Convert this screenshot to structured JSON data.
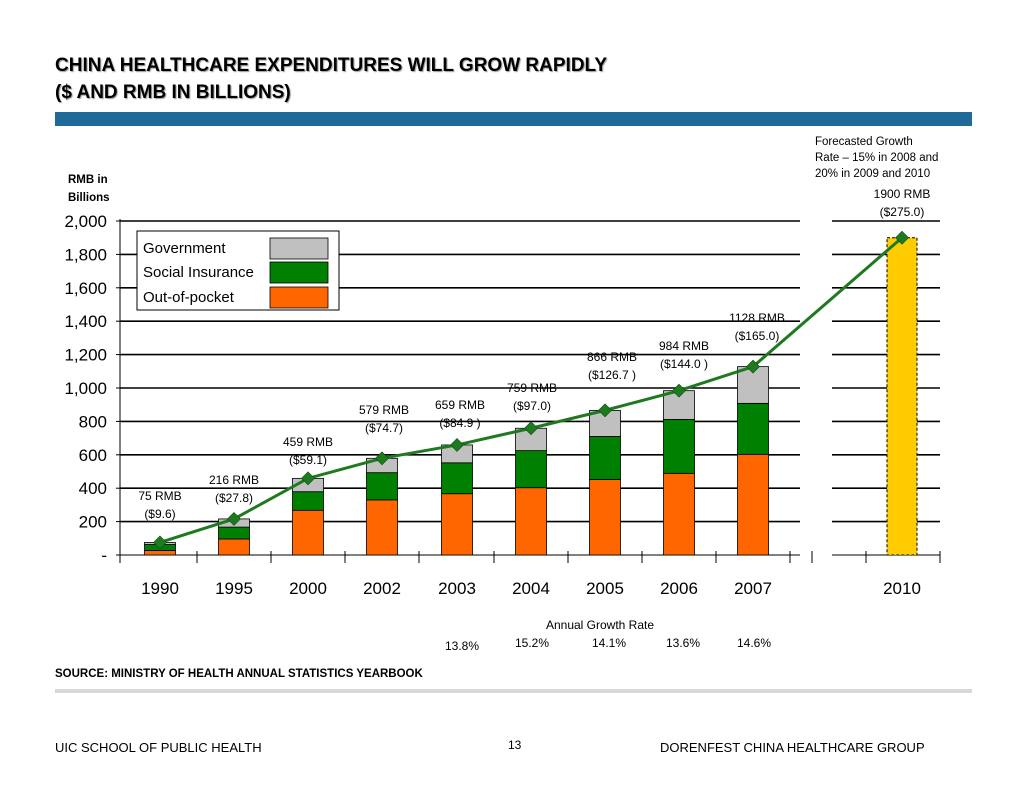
{
  "slide": {
    "title_line1": "CHINA HEALTHCARE EXPENDITURES WILL GROW RAPIDLY",
    "title_line2": "($ AND RMB IN BILLIONS)",
    "source": "SOURCE:  MINISTRY OF HEALTH ANNUAL STATISTICS YEARBOOK",
    "footer_left": "UIC SCHOOL OF PUBLIC HEALTH",
    "page_number": "13",
    "footer_right": "DORENFEST CHINA HEALTHCARE GROUP"
  },
  "colors": {
    "government": "#c0c0c0",
    "social_insurance": "#008000",
    "out_of_pocket": "#ff6600",
    "forecast_bar": "#ffcc00",
    "trend_line": "#1f7a1f"
  },
  "chart_data": {
    "type": "bar",
    "ylabel_line1": "RMB in",
    "ylabel_line2": "Billions",
    "ylim": [
      0,
      2000
    ],
    "yticks": [
      {
        "value": 0,
        "label": "-"
      },
      {
        "value": 200,
        "label": "200"
      },
      {
        "value": 400,
        "label": "400"
      },
      {
        "value": 600,
        "label": "600"
      },
      {
        "value": 800,
        "label": "800"
      },
      {
        "value": 1000,
        "label": "1,000"
      },
      {
        "value": 1200,
        "label": "1,200"
      },
      {
        "value": 1400,
        "label": "1,400"
      },
      {
        "value": 1600,
        "label": "1,600"
      },
      {
        "value": 1800,
        "label": "1,800"
      },
      {
        "value": 2000,
        "label": "2,000"
      }
    ],
    "categories": [
      "1990",
      "1995",
      "2000",
      "2002",
      "2003",
      "2004",
      "2005",
      "2006",
      "2007",
      "2010"
    ],
    "series": [
      {
        "name": "Out-of-pocket",
        "values": [
          27,
          96,
          268,
          330,
          367,
          403,
          452,
          489,
          603,
          null
        ]
      },
      {
        "name": "Social Insurance",
        "values": [
          36,
          71,
          111,
          163,
          185,
          222,
          258,
          323,
          305,
          null
        ]
      },
      {
        "name": "Government",
        "values": [
          12,
          49,
          80,
          86,
          107,
          134,
          156,
          172,
          220,
          null
        ]
      }
    ],
    "forecast": {
      "category": "2010",
      "value": 1900
    },
    "totals_rmb": [
      75,
      216,
      459,
      579,
      659,
      759,
      866,
      984,
      1128,
      1900
    ],
    "total_labels": [
      {
        "rmb": "75 RMB",
        "usd": "($9.6)"
      },
      {
        "rmb": "216 RMB",
        "usd": "($27.8)"
      },
      {
        "rmb": "459 RMB",
        "usd": "($59.1)"
      },
      {
        "rmb": "579 RMB",
        "usd": "($74.7)"
      },
      {
        "rmb": "659 RMB",
        "usd": "($84.9 )"
      },
      {
        "rmb": "759 RMB",
        "usd": "($97.0)"
      },
      {
        "rmb": "866 RMB",
        "usd": "($126.7 )"
      },
      {
        "rmb": "984 RMB",
        "usd": "($144.0 )"
      },
      {
        "rmb": "1128 RMB",
        "usd": "($165.0)"
      },
      {
        "rmb": "1900 RMB",
        "usd": "($275.0)"
      }
    ],
    "forecast_note_lines": [
      "Forecasted Growth",
      "Rate – 15% in 2008 and",
      "20% in 2009 and 2010"
    ],
    "legend_placement": "top-left",
    "grid": true,
    "growth_title": "Annual Growth Rate",
    "growth_rates": [
      {
        "category": "2003",
        "rate": "13.8%"
      },
      {
        "category": "2004",
        "rate": "15.2%"
      },
      {
        "category": "2005",
        "rate": "14.1%"
      },
      {
        "category": "2006",
        "rate": "13.6%"
      },
      {
        "category": "2007",
        "rate": "14.6%"
      }
    ]
  }
}
